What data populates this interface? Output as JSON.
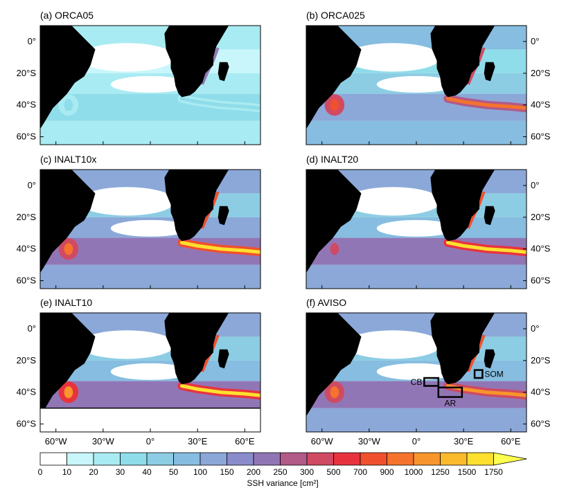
{
  "chart_data": {
    "type": "heatmap",
    "variable_label": "SSH variance [cm²]",
    "colorbar": {
      "levels": [
        "0",
        "10",
        "20",
        "30",
        "40",
        "50",
        "100",
        "150",
        "200",
        "250",
        "300",
        "500",
        "700",
        "900",
        "1000",
        "1250",
        "1500",
        "1750"
      ],
      "colors": [
        "#ffffff",
        "#c8f6fa",
        "#a9ebf2",
        "#8fdcea",
        "#8ccde4",
        "#86bde0",
        "#8ba8d8",
        "#8a8ccc",
        "#9176b6",
        "#b25a88",
        "#cf4a62",
        "#e8333f",
        "#f0502e",
        "#f5732c",
        "#f8952c",
        "#fbba2c",
        "#fde02e",
        "#ffff50"
      ],
      "extend": "max"
    },
    "axes": {
      "lon_ticks": [
        "60°W",
        "30°W",
        "0°",
        "30°E",
        "60°E"
      ],
      "lat_ticks": [
        "0°",
        "20°S",
        "40°S",
        "60°S"
      ],
      "lon_range": [
        -70,
        70
      ],
      "lat_range": [
        -65,
        10
      ]
    },
    "panels": [
      {
        "title": "(a) ORCA05",
        "intensity": 0.12,
        "retro_level": 0.15,
        "agulhas_level": 0.2
      },
      {
        "title": "(b) ORCA025",
        "intensity": 0.55,
        "retro_level": 0.7,
        "agulhas_level": 0.75
      },
      {
        "title": "(c) INALT10x",
        "intensity": 0.85,
        "retro_level": 0.75,
        "agulhas_level": 0.97
      },
      {
        "title": "(d) INALT20",
        "intensity": 0.8,
        "retro_level": 0.6,
        "agulhas_level": 0.92
      },
      {
        "title": "(e) INALT10",
        "intensity": 0.8,
        "retro_level": 0.8,
        "agulhas_level": 0.95,
        "southern_boundary_lat": -50
      },
      {
        "title": "(f) AVISO",
        "intensity": 0.78,
        "retro_level": 0.75,
        "agulhas_level": 0.82,
        "boxes": [
          {
            "label": "CB",
            "lon": [
              5,
              14
            ],
            "lat": [
              -36,
              -31
            ]
          },
          {
            "label": "AR",
            "lon": [
              14,
              29
            ],
            "lat": [
              -43,
              -37
            ]
          },
          {
            "label": "SOM",
            "lon": [
              37,
              42
            ],
            "lat": [
              -31,
              -26
            ]
          }
        ]
      }
    ]
  }
}
